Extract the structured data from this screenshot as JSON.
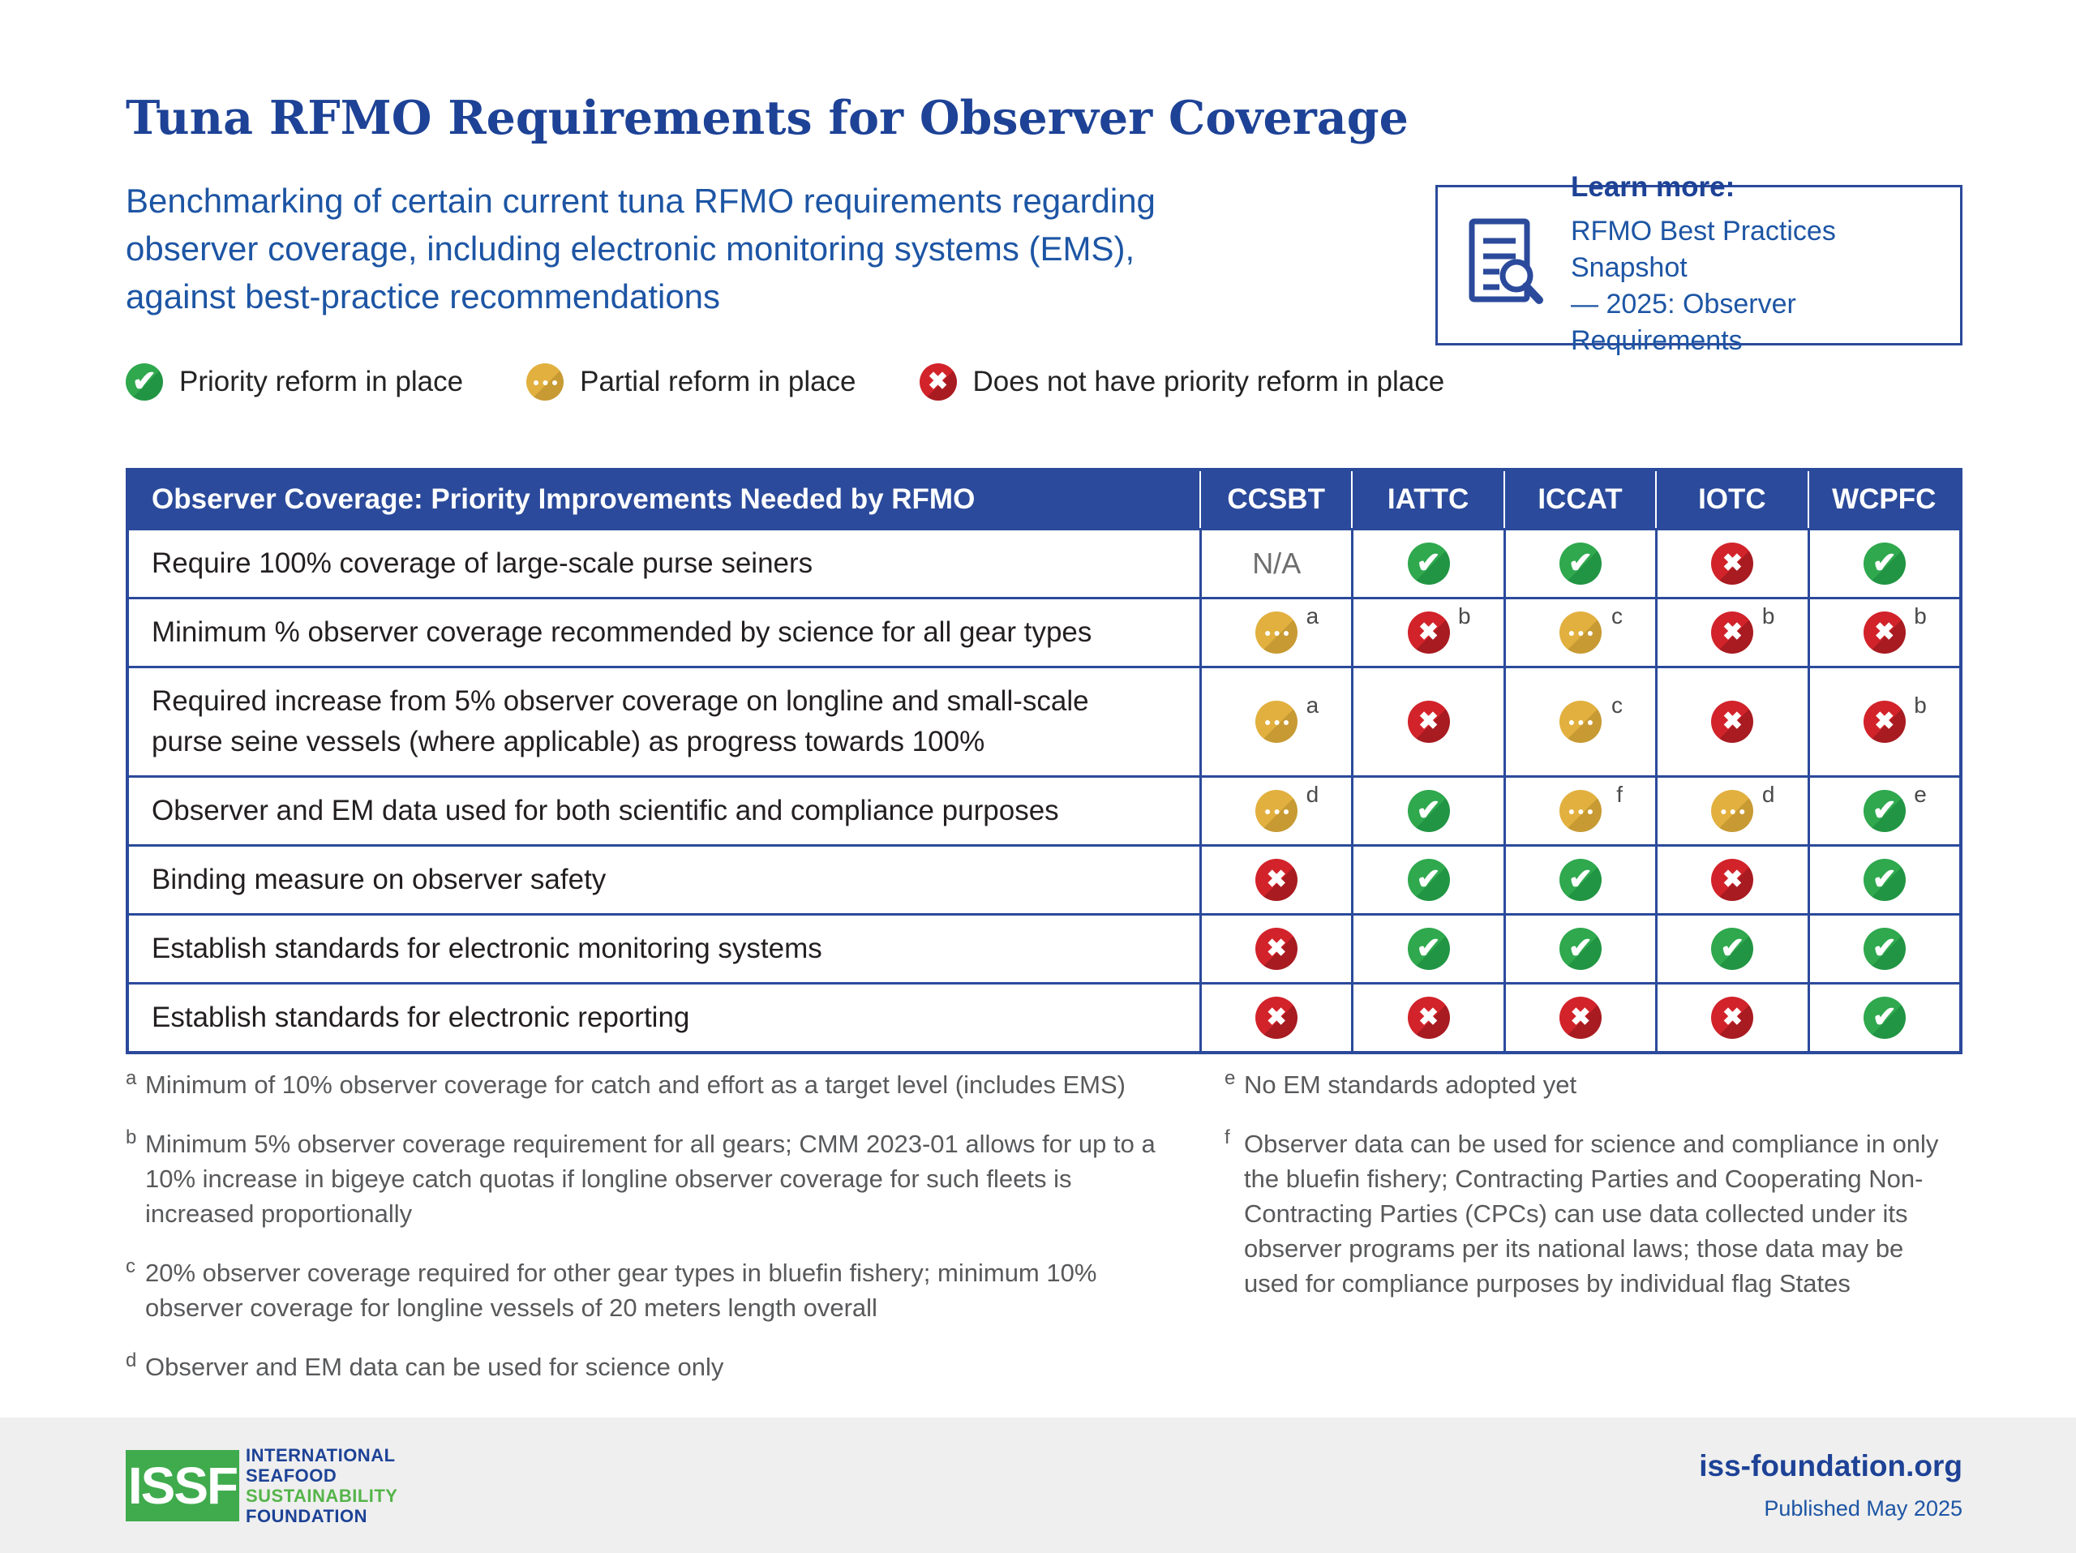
{
  "title": "Tuna RFMO Requirements for Observer Coverage",
  "subtitle": "Benchmarking of certain current tuna RFMO requirements regarding observer coverage, including electronic monitoring systems (EMS), against best-practice recommendations",
  "learn_more": {
    "heading": "Learn more:",
    "link_line1": "RFMO Best Practices Snapshot",
    "link_line2": "— 2025: Observer Requirements",
    "icon": "document-search-icon"
  },
  "legend": [
    {
      "status": "yes",
      "icon": "check-icon",
      "label": "Priority reform in place"
    },
    {
      "status": "partial",
      "icon": "ellipsis-icon",
      "label": "Partial reform in place"
    },
    {
      "status": "no",
      "icon": "x-icon",
      "label": "Does not have priority reform in place"
    }
  ],
  "table": {
    "header": "Observer Coverage: Priority Improvements Needed by RFMO",
    "columns": [
      "CCSBT",
      "IATTC",
      "ICCAT",
      "IOTC",
      "WCPFC"
    ],
    "rows": [
      {
        "label": "Require 100% coverage of large-scale purse seiners",
        "cells": [
          {
            "value": "N/A"
          },
          {
            "status": "yes"
          },
          {
            "status": "yes"
          },
          {
            "status": "no"
          },
          {
            "status": "yes"
          }
        ]
      },
      {
        "label": "Minimum % observer coverage recommended by science for all gear types",
        "cells": [
          {
            "status": "partial",
            "note": "a"
          },
          {
            "status": "no",
            "note": "b"
          },
          {
            "status": "partial",
            "note": "c"
          },
          {
            "status": "no",
            "note": "b"
          },
          {
            "status": "no",
            "note": "b"
          }
        ]
      },
      {
        "label": "Required increase from 5% observer coverage on longline and small-scale purse seine vessels (where applicable) as progress towards 100%",
        "cells": [
          {
            "status": "partial",
            "note": "a"
          },
          {
            "status": "no"
          },
          {
            "status": "partial",
            "note": "c"
          },
          {
            "status": "no"
          },
          {
            "status": "no",
            "note": "b"
          }
        ]
      },
      {
        "label": "Observer and EM data used for both scientific and compliance purposes",
        "cells": [
          {
            "status": "partial",
            "note": "d"
          },
          {
            "status": "yes"
          },
          {
            "status": "partial",
            "note": "f"
          },
          {
            "status": "partial",
            "note": "d"
          },
          {
            "status": "yes",
            "note": "e"
          }
        ]
      },
      {
        "label": "Binding measure on observer safety",
        "cells": [
          {
            "status": "no"
          },
          {
            "status": "yes"
          },
          {
            "status": "yes"
          },
          {
            "status": "no"
          },
          {
            "status": "yes"
          }
        ]
      },
      {
        "label": "Establish standards for electronic monitoring systems",
        "cells": [
          {
            "status": "no"
          },
          {
            "status": "yes"
          },
          {
            "status": "yes"
          },
          {
            "status": "yes"
          },
          {
            "status": "yes"
          }
        ]
      },
      {
        "label": "Establish standards for electronic reporting",
        "cells": [
          {
            "status": "no"
          },
          {
            "status": "no"
          },
          {
            "status": "no"
          },
          {
            "status": "no"
          },
          {
            "status": "yes"
          }
        ]
      }
    ]
  },
  "footnotes": {
    "left": [
      {
        "marker": "a",
        "text": "Minimum of 10% observer coverage for catch and effort as a target level (includes EMS)"
      },
      {
        "marker": "b",
        "text": "Minimum 5% observer coverage requirement for all gears; CMM 2023-01 allows for up to a 10% increase in bigeye catch quotas if longline observer coverage for such fleets is increased proportionally"
      },
      {
        "marker": "c",
        "text": "20% observer coverage required for other gear types in bluefin fishery; minimum 10% observer coverage for longline vessels of 20 meters length overall"
      },
      {
        "marker": "d",
        "text": "Observer and EM data can be used for science only"
      }
    ],
    "right": [
      {
        "marker": "e",
        "text": "No EM standards adopted yet"
      },
      {
        "marker": "f",
        "text": "Observer data can be used for science and compliance in only the bluefin fishery; Contracting Parties and Cooperating Non-Contracting Parties (CPCs) can use data collected under its observer programs per its national laws; those data may be used for compliance purposes by individual flag States"
      }
    ]
  },
  "footer": {
    "logo_abbr": "ISSF",
    "logo_lines": [
      {
        "text": "INTERNATIONAL",
        "color": "blue"
      },
      {
        "text": "SEAFOOD",
        "color": "blue"
      },
      {
        "text": "SUSTAINABILITY",
        "color": "green"
      },
      {
        "text": "FOUNDATION",
        "color": "blue"
      }
    ],
    "website": "iss-foundation.org",
    "published": "Published May 2025"
  },
  "colors": {
    "navy": "#1D4296",
    "blue": "#2B4A9B",
    "link_blue": "#1D55A4",
    "green": "#2FA84E",
    "yellow": "#E2B03F",
    "red": "#D2232A",
    "text_dark": "#231F20",
    "gray_text": "#58595B",
    "na_gray": "#6E6E6E",
    "footer_bg": "#EFEFEF",
    "logo_green": "#3FAB4D",
    "logo_text_green": "#55B44A"
  }
}
